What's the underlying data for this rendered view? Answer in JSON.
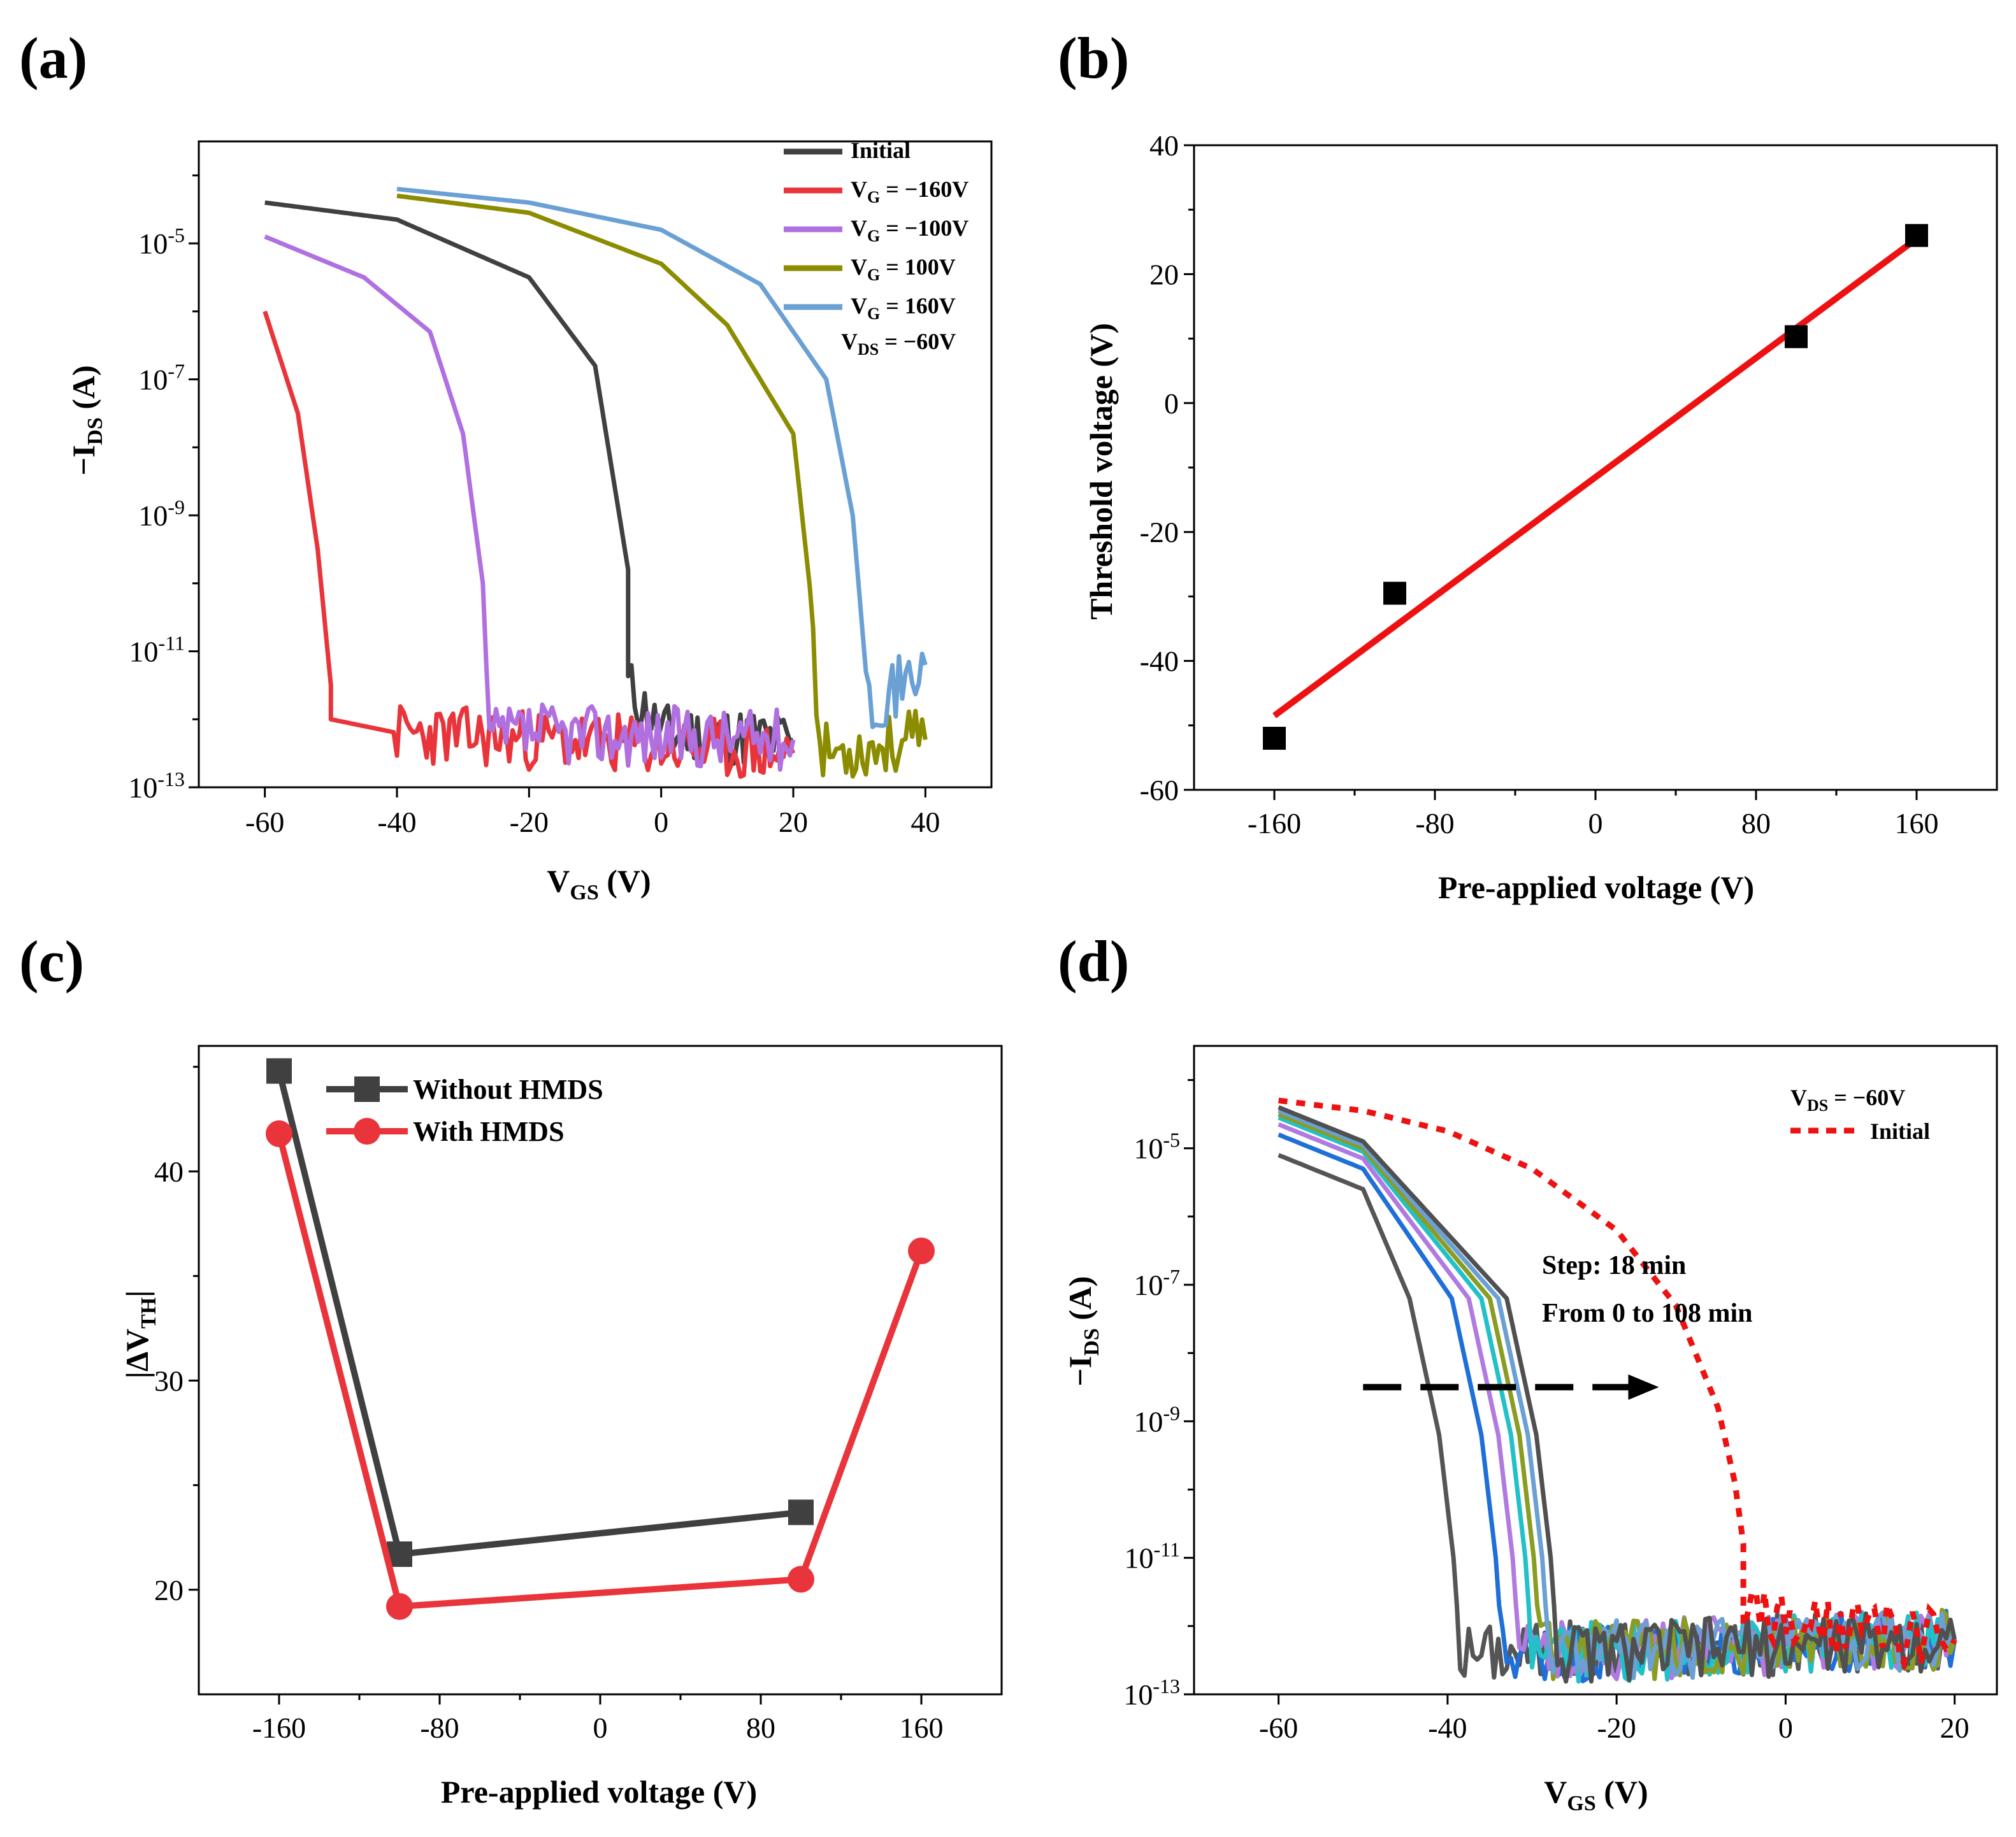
{
  "chart_data": [
    {
      "panel": "(a)",
      "type": "line",
      "xlabel_main": "V",
      "xlabel_sub": "GS",
      "xlabel_unit": " (V)",
      "ylabel_prefix": "−I",
      "ylabel_sub": "DS",
      "ylabel_unit": " (A)",
      "yscale": "log",
      "xlim": [
        -70,
        50
      ],
      "ylim_exp": [
        -13,
        -3.5
      ],
      "xticks": [
        -60,
        -40,
        -20,
        0,
        20,
        40
      ],
      "yticks_exp": [
        -5,
        -7,
        -9,
        -11,
        -13
      ],
      "yticks_labels": [
        "10^-5",
        "10^-7",
        "10^-9",
        "10^-11",
        "10^-13"
      ],
      "annotation": {
        "main": "V",
        "sub": "DS",
        "rest": " = −60V"
      },
      "series": [
        {
          "name": "Initial",
          "label_main": "Initial",
          "label_sub": "",
          "label_rest": "",
          "color": "#404040",
          "x": [
            -60,
            -40,
            -20,
            -10,
            -5,
            -5,
            0,
            20
          ],
          "log10_y": [
            -4.4,
            -4.65,
            -5.5,
            -6.8,
            -9.8,
            -11.5,
            -12.2,
            -12.3
          ]
        },
        {
          "name": "VG = -160V",
          "label_main": "V",
          "label_sub": "G",
          "label_rest": " = −160V",
          "color": "#e8343a",
          "x": [
            -60,
            -55,
            -52,
            -50,
            -50,
            -40,
            -20,
            20
          ],
          "log10_y": [
            -6.0,
            -7.5,
            -9.5,
            -11.5,
            -12.0,
            -12.2,
            -12.3,
            -12.5
          ]
        },
        {
          "name": "VG = -100V",
          "label_main": "V",
          "label_sub": "G",
          "label_rest": " = −100V",
          "color": "#b070e0",
          "x": [
            -60,
            -45,
            -35,
            -30,
            -27,
            -26,
            -20,
            20
          ],
          "log10_y": [
            -4.9,
            -5.5,
            -6.3,
            -7.8,
            -10.0,
            -12.3,
            -12.2,
            -12.3
          ]
        },
        {
          "name": "VG = 100V",
          "label_main": "V",
          "label_sub": "G",
          "label_rest": " = 100V",
          "color": "#8c8c00",
          "x": [
            -40,
            -20,
            0,
            10,
            20,
            23,
            24,
            40
          ],
          "log10_y": [
            -4.3,
            -4.55,
            -5.3,
            -6.2,
            -7.8,
            -10.5,
            -12.5,
            -12.3
          ]
        },
        {
          "name": "VG = 160V",
          "label_main": "V",
          "label_sub": "G",
          "label_rest": " = 160V",
          "color": "#6aa0d4",
          "x": [
            -40,
            -20,
            0,
            15,
            25,
            29,
            31,
            32,
            35,
            40
          ],
          "log10_y": [
            -4.2,
            -4.4,
            -4.8,
            -5.6,
            -7.0,
            -9.0,
            -11.3,
            -11.7,
            -11.6,
            -11.2
          ]
        }
      ]
    },
    {
      "panel": "(b)",
      "type": "scatter",
      "xlabel": "Pre-applied voltage (V)",
      "ylabel": "Threshold voltage (V)",
      "xlim": [
        -200,
        200
      ],
      "ylim": [
        -60,
        40
      ],
      "xticks": [
        -160,
        -80,
        0,
        80,
        160
      ],
      "yticks": [
        40,
        20,
        0,
        -20,
        -40,
        -60
      ],
      "points": {
        "x": [
          -160,
          -100,
          100,
          160
        ],
        "y": [
          -52,
          -29.5,
          10.3,
          26
        ],
        "color": "#000000"
      },
      "fit": {
        "x": [
          -160,
          160
        ],
        "y": [
          -48.5,
          25.5
        ],
        "color": "#ee1111"
      }
    },
    {
      "panel": "(c)",
      "type": "line",
      "xlabel": "Pre-applied voltage (V)",
      "ylabel": "|ΔV_TH|",
      "ylabel_main": "|ΔV",
      "ylabel_sub": "TH",
      "ylabel_end": "|",
      "xlim": [
        -200,
        200
      ],
      "ylim": [
        15,
        46
      ],
      "xticks": [
        -160,
        -80,
        0,
        80,
        160
      ],
      "yticks": [
        20,
        30,
        40
      ],
      "series": [
        {
          "name": "Without HMDS",
          "color": "#404040",
          "marker": "square",
          "x": [
            -160,
            -100,
            100
          ],
          "y": [
            44.8,
            21.7,
            23.7
          ]
        },
        {
          "name": "With HMDS",
          "color": "#e8343a",
          "marker": "circle",
          "x": [
            -160,
            -100,
            100,
            160
          ],
          "y": [
            41.8,
            19.2,
            20.5,
            36.2
          ]
        }
      ]
    },
    {
      "panel": "(d)",
      "type": "line",
      "xlabel_main": "V",
      "xlabel_sub": "GS",
      "xlabel_unit": " (V)",
      "ylabel_prefix": "−I",
      "ylabel_sub": "DS",
      "ylabel_unit": " (A)",
      "yscale": "log",
      "xlim": [
        -70,
        25
      ],
      "ylim_exp": [
        -13,
        -3.5
      ],
      "xticks": [
        -60,
        -40,
        -20,
        0,
        20
      ],
      "yticks_exp": [
        -5,
        -7,
        -9,
        -11,
        -13
      ],
      "yticks_labels": [
        "10^-5",
        "10^-7",
        "10^-9",
        "10^-11",
        "10^-13"
      ],
      "annotation_vds": {
        "main": "V",
        "sub": "DS",
        "rest": " = −60V"
      },
      "legend_initial": "Initial",
      "step_text": "Step: 18 min",
      "range_text": "From 0 to 108 min",
      "arrow": {
        "x_start": -50,
        "x_end": -15,
        "log10_y": -8.5
      },
      "initial": {
        "color": "#ee1111",
        "x": [
          -60,
          -50,
          -40,
          -30,
          -20,
          -13,
          -8,
          -6,
          -5,
          -5,
          0,
          20
        ],
        "log10_y": [
          -4.3,
          -4.45,
          -4.75,
          -5.3,
          -6.2,
          -7.3,
          -8.8,
          -9.9,
          -10.8,
          -11.7,
          -12.0,
          -12.2
        ]
      },
      "shifts": [
        {
          "time_min": 0,
          "color": "#555555",
          "x0": -60,
          "log10_y0": -5.1,
          "x_drop": -38.5
        },
        {
          "time_min": 18,
          "color": "#1f6fd8",
          "x0": -60,
          "log10_y0": -4.8,
          "x_drop": -33.5
        },
        {
          "time_min": 36,
          "color": "#b07ae0",
          "x0": -60,
          "log10_y0": -4.65,
          "x_drop": -31.5
        },
        {
          "time_min": 54,
          "color": "#22c0c8",
          "x0": -60,
          "log10_y0": -4.55,
          "x_drop": -30
        },
        {
          "time_min": 72,
          "color": "#8a9c22",
          "x0": -60,
          "log10_y0": -4.5,
          "x_drop": -29
        },
        {
          "time_min": 90,
          "color": "#6aa0d4",
          "x0": -60,
          "log10_y0": -4.45,
          "x_drop": -28
        },
        {
          "time_min": 108,
          "color": "#505050",
          "x0": -60,
          "log10_y0": -4.4,
          "x_drop": -27
        }
      ]
    }
  ]
}
